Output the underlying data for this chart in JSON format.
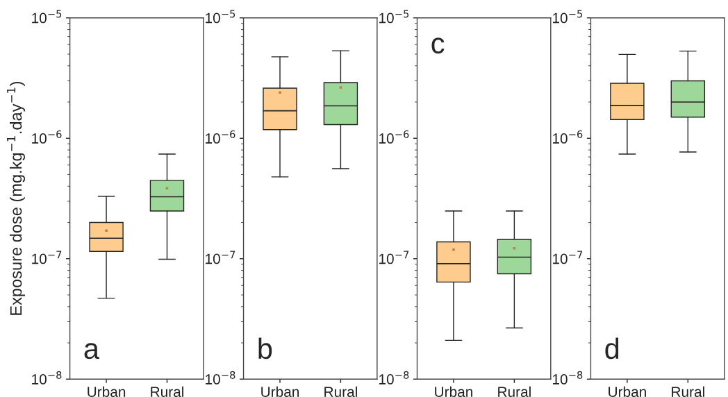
{
  "chart_data": [
    {
      "type": "box",
      "ylabel": "Exposure dose (mg.kg$^{−1}$.day$^{−1}$)",
      "annotations": [
        "a"
      ],
      "categories": [
        "Urban",
        "Rural"
      ],
      "colors": [
        "#ffcc8f",
        "#9dd79a"
      ],
      "log": true,
      "ylim": [
        1e-08,
        1e-05
      ],
      "yticks": [
        {
          "value": 1e-08,
          "label": "10$^{−8}$"
        },
        {
          "value": 1e-07,
          "label": "10$^{−7}$"
        },
        {
          "value": 1e-06,
          "label": "10$^{−6}$"
        },
        {
          "value": 1e-05,
          "label": "10$^{−5}$"
        }
      ],
      "boxes": [
        {
          "low": 4.7e-08,
          "q1": 1.15e-07,
          "median": 1.48e-07,
          "q3": 2e-07,
          "high": 3.3e-07,
          "mean": 1.71e-07
        },
        {
          "low": 9.9e-08,
          "q1": 2.49e-07,
          "median": 3.27e-07,
          "q3": 4.47e-07,
          "high": 7.4e-07,
          "mean": 3.85e-07
        }
      ]
    },
    {
      "type": "box",
      "annotations": [
        "b"
      ],
      "categories": [
        "Urban",
        "Rural"
      ],
      "colors": [
        "#ffcc8f",
        "#9dd79a"
      ],
      "log": true,
      "ylim": [
        1e-08,
        1e-05
      ],
      "yticks": [
        {
          "value": 1e-08,
          "label": "10$^{−8}$"
        },
        {
          "value": 1e-07,
          "label": "10$^{−7}$"
        },
        {
          "value": 1e-06,
          "label": "10$^{−6}$"
        },
        {
          "value": 1e-05,
          "label": "10$^{−5}$"
        }
      ],
      "boxes": [
        {
          "low": 4.78e-07,
          "q1": 1.18e-06,
          "median": 1.69e-06,
          "q3": 2.61e-06,
          "high": 4.75e-06,
          "mean": 2.4e-06
        },
        {
          "low": 5.6e-07,
          "q1": 1.3e-06,
          "median": 1.86e-06,
          "q3": 2.9e-06,
          "high": 5.33e-06,
          "mean": 2.64e-06
        }
      ]
    },
    {
      "type": "box",
      "annotations": [
        "c"
      ],
      "categories": [
        "Urban",
        "Rural"
      ],
      "colors": [
        "#ffcc8f",
        "#9dd79a"
      ],
      "log": true,
      "ylim": [
        1e-08,
        1e-05
      ],
      "yticks": [
        {
          "value": 1e-08,
          "label": "10$^{−8}$"
        },
        {
          "value": 1e-07,
          "label": "10$^{−7}$"
        },
        {
          "value": 1e-06,
          "label": "10$^{−6}$"
        },
        {
          "value": 1e-05,
          "label": "10$^{−5}$"
        }
      ],
      "boxes": [
        {
          "low": 2.1e-08,
          "q1": 6.4e-08,
          "median": 9.1e-08,
          "q3": 1.38e-07,
          "high": 2.49e-07,
          "mean": 1.19e-07
        },
        {
          "low": 2.66e-08,
          "q1": 7.5e-08,
          "median": 1.03e-07,
          "q3": 1.45e-07,
          "high": 2.49e-07,
          "mean": 1.22e-07
        }
      ]
    },
    {
      "type": "box",
      "annotations": [
        "d"
      ],
      "categories": [
        "Urban",
        "Rural"
      ],
      "colors": [
        "#ffcc8f",
        "#9dd79a"
      ],
      "log": true,
      "ylim": [
        1e-08,
        1e-05
      ],
      "yticks": [
        {
          "value": 1e-08,
          "label": "10$^{−8}$"
        },
        {
          "value": 1e-07,
          "label": "10$^{−7}$"
        },
        {
          "value": 1e-06,
          "label": "10$^{−6}$"
        },
        {
          "value": 1e-05,
          "label": "10$^{−5}$"
        }
      ],
      "boxes": [
        {
          "low": 7.4e-07,
          "q1": 1.43e-06,
          "median": 1.87e-06,
          "q3": 2.86e-06,
          "high": 4.97e-06
        },
        {
          "low": 7.7e-07,
          "q1": 1.5e-06,
          "median": 2e-06,
          "q3": 3e-06,
          "high": 5.3e-06
        }
      ]
    }
  ]
}
